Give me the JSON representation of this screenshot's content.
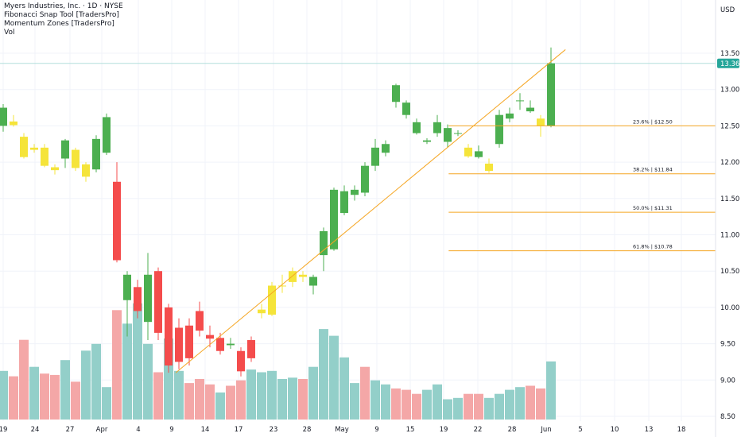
{
  "legend": {
    "symbol": "Myers Industries, Inc. · 1D · NYSE",
    "indicator1": "Fibonacci Snap Tool [TradersPro]",
    "indicator2": "Momentum Zones [TradersPro]",
    "indicator3": "Vol"
  },
  "currency_label": "USD",
  "last_price_label": "13.36",
  "colors": {
    "up": "#4caf50",
    "down": "#f44c4c",
    "neutral": "#f5e43a",
    "vol_up": "#93cfc9",
    "vol_down": "#f4a7a7",
    "fib": "#f5a623",
    "last_price": "#26a69a"
  },
  "chart_data": {
    "type": "candlestick",
    "ylim": [
      8.5,
      13.75
    ],
    "y_ticks": [
      "13.50",
      "13.00",
      "12.50",
      "12.00",
      "11.50",
      "11.00",
      "10.50",
      "10.00",
      "9.50",
      "9.00",
      "8.50"
    ],
    "x_ticks": [
      "19",
      "24",
      "27",
      "Apr",
      "4",
      "9",
      "14",
      "17",
      "23",
      "28",
      "May",
      "9",
      "15",
      "19",
      "22",
      "28",
      "Jun",
      "5",
      "10",
      "13",
      "18"
    ],
    "candles": [
      {
        "o": 12.5,
        "h": 12.8,
        "l": 12.42,
        "c": 12.75,
        "z": "up"
      },
      {
        "o": 12.56,
        "h": 12.65,
        "l": 12.49,
        "c": 12.51,
        "z": "neutral"
      },
      {
        "o": 12.35,
        "h": 12.4,
        "l": 12.05,
        "c": 12.07,
        "z": "neutral"
      },
      {
        "o": 12.17,
        "h": 12.25,
        "l": 12.13,
        "c": 12.2,
        "z": "neutral"
      },
      {
        "o": 12.2,
        "h": 12.25,
        "l": 11.93,
        "c": 11.95,
        "z": "neutral"
      },
      {
        "o": 11.93,
        "h": 11.97,
        "l": 11.83,
        "c": 11.89,
        "z": "neutral"
      },
      {
        "o": 12.05,
        "h": 12.32,
        "l": 11.92,
        "c": 12.3,
        "z": "up"
      },
      {
        "o": 12.17,
        "h": 12.2,
        "l": 11.88,
        "c": 11.92,
        "z": "neutral"
      },
      {
        "o": 11.97,
        "h": 12.0,
        "l": 11.73,
        "c": 11.8,
        "z": "neutral"
      },
      {
        "o": 11.9,
        "h": 12.37,
        "l": 11.86,
        "c": 12.32,
        "z": "up"
      },
      {
        "o": 12.13,
        "h": 12.67,
        "l": 12.1,
        "c": 12.62,
        "z": "up"
      },
      {
        "o": 11.73,
        "h": 12.0,
        "l": 10.62,
        "c": 10.65,
        "z": "down"
      },
      {
        "o": 10.1,
        "h": 10.5,
        "l": 9.6,
        "c": 10.45,
        "z": "up"
      },
      {
        "o": 10.28,
        "h": 10.38,
        "l": 9.85,
        "c": 9.95,
        "z": "down"
      },
      {
        "o": 10.45,
        "h": 10.75,
        "l": 9.55,
        "c": 9.8,
        "z": "up"
      },
      {
        "o": 10.5,
        "h": 10.55,
        "l": 9.55,
        "c": 9.65,
        "z": "down"
      },
      {
        "o": 10.0,
        "h": 10.05,
        "l": 9.1,
        "c": 9.2,
        "z": "down"
      },
      {
        "o": 9.72,
        "h": 9.85,
        "l": 9.15,
        "c": 9.25,
        "z": "down"
      },
      {
        "o": 9.75,
        "h": 9.85,
        "l": 9.2,
        "c": 9.3,
        "z": "down"
      },
      {
        "o": 9.95,
        "h": 10.08,
        "l": 9.6,
        "c": 9.68,
        "z": "down"
      },
      {
        "o": 9.62,
        "h": 9.75,
        "l": 9.45,
        "c": 9.57,
        "z": "down"
      },
      {
        "o": 9.58,
        "h": 9.65,
        "l": 9.35,
        "c": 9.4,
        "z": "down"
      },
      {
        "o": 9.5,
        "h": 9.58,
        "l": 9.43,
        "c": 9.48,
        "z": "up"
      },
      {
        "o": 9.4,
        "h": 9.45,
        "l": 9.05,
        "c": 9.12,
        "z": "down"
      },
      {
        "o": 9.55,
        "h": 9.6,
        "l": 9.25,
        "c": 9.3,
        "z": "down"
      },
      {
        "o": 9.97,
        "h": 10.05,
        "l": 9.85,
        "c": 9.92,
        "z": "neutral"
      },
      {
        "o": 9.9,
        "h": 10.35,
        "l": 9.88,
        "c": 10.3,
        "z": "neutral"
      },
      {
        "o": 10.3,
        "h": 10.45,
        "l": 10.2,
        "c": 10.3,
        "z": "neutral"
      },
      {
        "o": 10.35,
        "h": 10.55,
        "l": 10.28,
        "c": 10.5,
        "z": "neutral"
      },
      {
        "o": 10.42,
        "h": 10.5,
        "l": 10.35,
        "c": 10.45,
        "z": "neutral"
      },
      {
        "o": 10.3,
        "h": 10.45,
        "l": 10.18,
        "c": 10.42,
        "z": "up"
      },
      {
        "o": 10.72,
        "h": 11.1,
        "l": 10.5,
        "c": 11.05,
        "z": "up"
      },
      {
        "o": 10.8,
        "h": 11.65,
        "l": 10.78,
        "c": 11.62,
        "z": "up"
      },
      {
        "o": 11.3,
        "h": 11.68,
        "l": 11.27,
        "c": 11.6,
        "z": "up"
      },
      {
        "o": 11.55,
        "h": 11.68,
        "l": 11.47,
        "c": 11.62,
        "z": "up"
      },
      {
        "o": 11.58,
        "h": 12.0,
        "l": 11.53,
        "c": 11.95,
        "z": "up"
      },
      {
        "o": 11.95,
        "h": 12.32,
        "l": 11.88,
        "c": 12.2,
        "z": "up"
      },
      {
        "o": 12.13,
        "h": 12.3,
        "l": 12.08,
        "c": 12.25,
        "z": "up"
      },
      {
        "o": 12.83,
        "h": 13.08,
        "l": 12.75,
        "c": 13.06,
        "z": "up"
      },
      {
        "o": 12.65,
        "h": 12.85,
        "l": 12.6,
        "c": 12.82,
        "z": "up"
      },
      {
        "o": 12.4,
        "h": 12.6,
        "l": 12.38,
        "c": 12.55,
        "z": "up"
      },
      {
        "o": 12.3,
        "h": 12.33,
        "l": 12.25,
        "c": 12.28,
        "z": "up"
      },
      {
        "o": 12.4,
        "h": 12.65,
        "l": 12.35,
        "c": 12.55,
        "z": "up"
      },
      {
        "o": 12.28,
        "h": 12.52,
        "l": 12.2,
        "c": 12.47,
        "z": "up"
      },
      {
        "o": 12.4,
        "h": 12.44,
        "l": 12.36,
        "c": 12.4,
        "z": "up"
      },
      {
        "o": 12.08,
        "h": 12.25,
        "l": 12.06,
        "c": 12.2,
        "z": "neutral"
      },
      {
        "o": 12.15,
        "h": 12.23,
        "l": 12.05,
        "c": 12.07,
        "z": "up"
      },
      {
        "o": 11.98,
        "h": 12.05,
        "l": 11.85,
        "c": 11.88,
        "z": "neutral"
      },
      {
        "o": 12.25,
        "h": 12.72,
        "l": 12.2,
        "c": 12.65,
        "z": "up"
      },
      {
        "o": 12.6,
        "h": 12.75,
        "l": 12.55,
        "c": 12.67,
        "z": "up"
      },
      {
        "o": 12.85,
        "h": 12.95,
        "l": 12.72,
        "c": 12.85,
        "z": "up"
      },
      {
        "o": 12.7,
        "h": 12.85,
        "l": 12.68,
        "c": 12.75,
        "z": "up"
      },
      {
        "o": 12.6,
        "h": 12.65,
        "l": 12.35,
        "c": 12.5,
        "z": "neutral"
      },
      {
        "o": 12.5,
        "h": 13.58,
        "l": 12.48,
        "c": 13.36,
        "z": "up"
      }
    ],
    "volume": [
      {
        "v": 0.36,
        "d": "up"
      },
      {
        "v": 0.32,
        "d": "down"
      },
      {
        "v": 0.59,
        "d": "down"
      },
      {
        "v": 0.39,
        "d": "up"
      },
      {
        "v": 0.34,
        "d": "down"
      },
      {
        "v": 0.33,
        "d": "down"
      },
      {
        "v": 0.44,
        "d": "up"
      },
      {
        "v": 0.28,
        "d": "down"
      },
      {
        "v": 0.51,
        "d": "up"
      },
      {
        "v": 0.56,
        "d": "up"
      },
      {
        "v": 0.24,
        "d": "up"
      },
      {
        "v": 0.81,
        "d": "down"
      },
      {
        "v": 0.71,
        "d": "up"
      },
      {
        "v": 0.86,
        "d": "up"
      },
      {
        "v": 0.56,
        "d": "up"
      },
      {
        "v": 0.35,
        "d": "down"
      },
      {
        "v": 0.6,
        "d": "up"
      },
      {
        "v": 0.36,
        "d": "up"
      },
      {
        "v": 0.27,
        "d": "down"
      },
      {
        "v": 0.3,
        "d": "down"
      },
      {
        "v": 0.26,
        "d": "down"
      },
      {
        "v": 0.2,
        "d": "up"
      },
      {
        "v": 0.25,
        "d": "down"
      },
      {
        "v": 0.29,
        "d": "down"
      },
      {
        "v": 0.37,
        "d": "up"
      },
      {
        "v": 0.35,
        "d": "up"
      },
      {
        "v": 0.36,
        "d": "up"
      },
      {
        "v": 0.3,
        "d": "up"
      },
      {
        "v": 0.31,
        "d": "up"
      },
      {
        "v": 0.3,
        "d": "down"
      },
      {
        "v": 0.39,
        "d": "up"
      },
      {
        "v": 0.67,
        "d": "up"
      },
      {
        "v": 0.62,
        "d": "up"
      },
      {
        "v": 0.46,
        "d": "up"
      },
      {
        "v": 0.27,
        "d": "up"
      },
      {
        "v": 0.39,
        "d": "down"
      },
      {
        "v": 0.29,
        "d": "up"
      },
      {
        "v": 0.26,
        "d": "up"
      },
      {
        "v": 0.23,
        "d": "down"
      },
      {
        "v": 0.22,
        "d": "down"
      },
      {
        "v": 0.19,
        "d": "down"
      },
      {
        "v": 0.22,
        "d": "up"
      },
      {
        "v": 0.26,
        "d": "up"
      },
      {
        "v": 0.15,
        "d": "up"
      },
      {
        "v": 0.16,
        "d": "up"
      },
      {
        "v": 0.19,
        "d": "down"
      },
      {
        "v": 0.19,
        "d": "down"
      },
      {
        "v": 0.16,
        "d": "up"
      },
      {
        "v": 0.19,
        "d": "up"
      },
      {
        "v": 0.22,
        "d": "up"
      },
      {
        "v": 0.24,
        "d": "up"
      },
      {
        "v": 0.25,
        "d": "down"
      },
      {
        "v": 0.23,
        "d": "down"
      },
      {
        "v": 0.43,
        "d": "up"
      }
    ],
    "fib_levels": [
      {
        "label": "23.6% | $12.50",
        "price": 12.5
      },
      {
        "label": "38.2% | $11.84",
        "price": 11.84
      },
      {
        "label": "50.0% | $11.31",
        "price": 11.31
      },
      {
        "label": "61.8% | $10.78",
        "price": 10.78
      }
    ],
    "trend_line": {
      "from": {
        "bar": 16.7,
        "price": 9.1
      },
      "to": {
        "bar": 54.4,
        "price": 13.55
      }
    },
    "fib_start_bar": 43.1,
    "last_price": 13.36
  }
}
